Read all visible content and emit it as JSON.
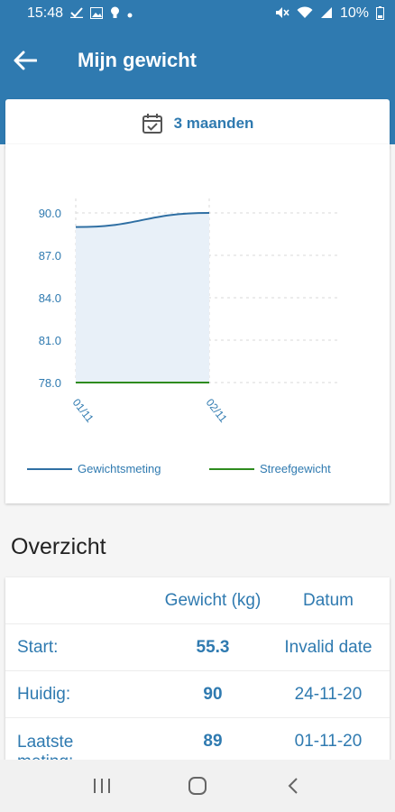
{
  "status_bar": {
    "time": "15:48",
    "battery": "10%",
    "left_icons": [
      "check-icon",
      "image-icon",
      "bulb-icon",
      "dot-icon"
    ],
    "right_icons": [
      "mute-icon",
      "wifi-icon",
      "signal-icon",
      "battery-icon"
    ]
  },
  "app_bar": {
    "title": "Mijn gewicht",
    "back_icon": "arrow-left-icon"
  },
  "range_tab": {
    "label": "3 maanden",
    "icon": "calendar-check-icon"
  },
  "colors": {
    "primary": "#2f7ab0",
    "weight_line": "#2f6fa3",
    "target_line": "#2e8b1e",
    "area_fill": "#e8f0f8"
  },
  "chart_data": {
    "type": "line",
    "title": "",
    "xlabel": "",
    "ylabel": "",
    "x": [
      "01/11",
      "02/11"
    ],
    "y_ticks": [
      "78.0",
      "81.0",
      "84.0",
      "87.0",
      "90.0"
    ],
    "ylim": [
      78,
      90
    ],
    "grid": true,
    "legend_position": "bottom",
    "series": [
      {
        "name": "Gewichtsmeting",
        "values": [
          89,
          90
        ],
        "color": "#2f6fa3",
        "fill": true
      },
      {
        "name": "Streefgewicht",
        "values": [
          78,
          78
        ],
        "color": "#2e8b1e",
        "fill": false
      }
    ]
  },
  "overview": {
    "title": "Overzicht",
    "headers": {
      "label": "",
      "weight": "Gewicht (kg)",
      "date": "Datum"
    },
    "rows": [
      {
        "label": "Start:",
        "weight": "55.3",
        "date": "Invalid date"
      },
      {
        "label": "Huidig:",
        "weight": "90",
        "date": "24-11-20"
      },
      {
        "label": "Laatste meting:",
        "weight": "89",
        "date": "01-11-20"
      }
    ]
  },
  "nav_bar": {
    "icons": [
      "recents-icon",
      "home-icon",
      "back-icon"
    ]
  }
}
